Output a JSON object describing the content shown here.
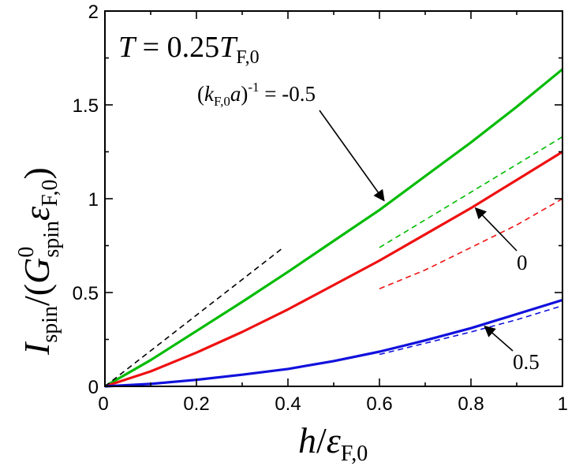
{
  "chart_data": {
    "type": "line",
    "title": "",
    "xlabel": "h/ε_F,0",
    "ylabel": "I_spin/(G⁰_spin ε_F,0)",
    "xlim": [
      0,
      1
    ],
    "ylim": [
      0,
      2
    ],
    "x_ticks": [
      0,
      0.2,
      0.4,
      0.6,
      0.8,
      1
    ],
    "y_ticks": [
      0,
      0.5,
      1,
      1.5,
      2
    ],
    "x_tick_labels": [
      "0",
      "0.2",
      "0.4",
      "0.6",
      "0.8",
      "1"
    ],
    "y_tick_labels": [
      "0",
      "0.5",
      "1",
      "1.5",
      "2"
    ],
    "grid": false,
    "legend": "none",
    "annotation_text": {
      "T_var": "T",
      "T_eq": " = 0.25",
      "T_ref": "T",
      "T_sub": "F,0",
      "k_prefix": "(",
      "k_var": "k",
      "k_sub": "F,0",
      "a_var": "a",
      "k_close": ")",
      "k_exp": "-1",
      "k_value": " = -0.5",
      "label_0": "0",
      "label_05": "0.5"
    },
    "axis_text": {
      "x_var": "h",
      "x_slash": "/",
      "x_eps": "ε",
      "x_sub": "F,0",
      "y_I": "I",
      "y_I_sub": "spin",
      "y_open": "/(",
      "y_G": "G",
      "y_G_sup": "0",
      "y_G_sub": "spin",
      "y_eps": "ε",
      "y_eps_sub": "F,0",
      "y_close": ")"
    },
    "series": [
      {
        "color": "#00bb00",
        "style": "solid",
        "x": [
          0,
          0.1,
          0.2,
          0.3,
          0.4,
          0.5,
          0.6,
          0.7,
          0.8,
          0.9,
          1.0
        ],
        "y": [
          0,
          0.14,
          0.295,
          0.45,
          0.61,
          0.775,
          0.94,
          1.12,
          1.3,
          1.49,
          1.69
        ]
      },
      {
        "color": "#ee1111",
        "style": "solid",
        "x": [
          0,
          0.1,
          0.2,
          0.3,
          0.4,
          0.5,
          0.6,
          0.7,
          0.8,
          0.9,
          1.0
        ],
        "y": [
          0,
          0.08,
          0.18,
          0.29,
          0.41,
          0.54,
          0.67,
          0.81,
          0.95,
          1.1,
          1.25
        ]
      },
      {
        "color": "#1111dd",
        "style": "solid",
        "x": [
          0,
          0.1,
          0.2,
          0.3,
          0.4,
          0.5,
          0.6,
          0.7,
          0.8,
          0.9,
          1.0
        ],
        "y": [
          0,
          0.013,
          0.035,
          0.062,
          0.093,
          0.135,
          0.185,
          0.245,
          0.31,
          0.385,
          0.46
        ]
      },
      {
        "color": "#000000",
        "style": "dashed",
        "x": [
          0,
          0.39
        ],
        "y": [
          0,
          0.74
        ]
      },
      {
        "color": "#00bb00",
        "style": "dashed",
        "x": [
          0.6,
          1.0
        ],
        "y": [
          0.74,
          1.33
        ]
      },
      {
        "color": "#ee1111",
        "style": "dashed",
        "x": [
          0.6,
          0.7,
          0.8,
          0.9,
          1.0
        ],
        "y": [
          0.52,
          0.62,
          0.74,
          0.86,
          1.0
        ]
      },
      {
        "color": "#1111dd",
        "style": "dashed",
        "x": [
          0.6,
          0.7,
          0.8,
          0.9,
          1.0
        ],
        "y": [
          0.17,
          0.23,
          0.29,
          0.355,
          0.43
        ]
      }
    ],
    "arrows": [
      {
        "label": "(k_F,0 a)^-1 = -0.5",
        "target": [
          0.61,
          0.99
        ]
      },
      {
        "label": "0",
        "target": [
          0.81,
          0.95
        ]
      },
      {
        "label": "0.5",
        "target": [
          0.83,
          0.32
        ]
      }
    ]
  }
}
